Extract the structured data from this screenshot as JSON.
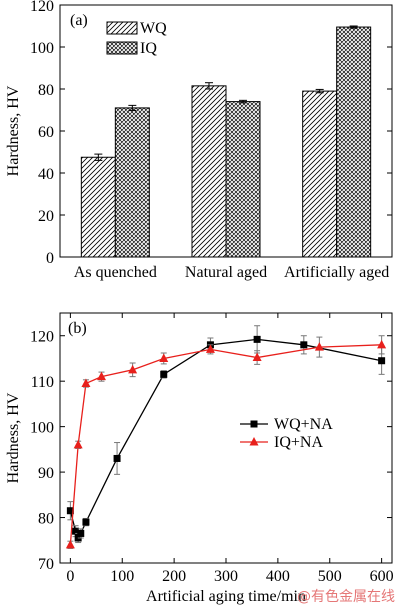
{
  "chart_data": [
    {
      "type": "bar",
      "panel_label": "(a)",
      "ylabel": "Hardness, HV",
      "ylim": [
        0,
        120
      ],
      "yticks": [
        "0",
        "20",
        "40",
        "60",
        "80",
        "100",
        "120"
      ],
      "categories": [
        "As quenched",
        "Natural aged",
        "Artificially aged"
      ],
      "series": [
        {
          "name": "WQ",
          "values": [
            47.5,
            81.5,
            79
          ],
          "errors": [
            1.5,
            1.5,
            0.8
          ],
          "pattern": "hatch"
        },
        {
          "name": "IQ",
          "values": [
            71,
            74,
            109.5
          ],
          "errors": [
            1.2,
            0.6,
            0.5
          ],
          "pattern": "crosshatch"
        }
      ],
      "legend": "top-left"
    },
    {
      "type": "line",
      "panel_label": "(b)",
      "xlabel": "Artificial aging time/min",
      "ylabel": "Hardness, HV",
      "xlim": [
        -20,
        620
      ],
      "ylim": [
        70,
        125
      ],
      "xticks": [
        "0",
        "100",
        "200",
        "300",
        "400",
        "500",
        "600"
      ],
      "yticks": [
        "70",
        "80",
        "90",
        "100",
        "110",
        "120"
      ],
      "series": [
        {
          "name": "WQ+NA",
          "color": "#000000",
          "marker": "square",
          "x": [
            0,
            10,
            15,
            20,
            30,
            90,
            180,
            270,
            360,
            450,
            600
          ],
          "y": [
            81.5,
            77,
            75.5,
            76.5,
            79,
            93,
            111.5,
            118,
            119.2,
            118,
            114.5
          ],
          "err": [
            2,
            1.2,
            1,
            1,
            0.8,
            3.5,
            0.8,
            1.5,
            3,
            2,
            3
          ]
        },
        {
          "name": "IQ+NA",
          "color": "#e8201c",
          "marker": "triangle",
          "x": [
            0,
            15,
            30,
            60,
            120,
            180,
            270,
            360,
            480,
            600
          ],
          "y": [
            74,
            96,
            109.5,
            111,
            112.5,
            115,
            117,
            115.2,
            117.5,
            118
          ],
          "err": [
            0.8,
            0.8,
            0.8,
            1,
            1.5,
            1.2,
            1,
            1.5,
            2.2,
            2
          ]
        }
      ],
      "legend": "center-right"
    }
  ],
  "watermark": "@有色金属在线"
}
